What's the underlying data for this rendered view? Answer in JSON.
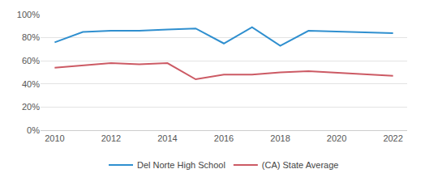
{
  "chart_data": {
    "type": "line",
    "x": [
      2010,
      2011,
      2012,
      2013,
      2014,
      2015,
      2016,
      2017,
      2018,
      2019,
      2022
    ],
    "series": [
      {
        "name": "Del Norte High School",
        "color": "#2f8fcf",
        "values": [
          76,
          85,
          86,
          86,
          87,
          88,
          75,
          89,
          73,
          86,
          84
        ]
      },
      {
        "name": "(CA) State Average",
        "color": "#cc5a64",
        "values": [
          54,
          56,
          58,
          57,
          58,
          44,
          48,
          48,
          50,
          51,
          47
        ]
      }
    ],
    "xlim": [
      2009.5,
      2022.5
    ],
    "xticks": [
      2010,
      2012,
      2014,
      2016,
      2018,
      2020,
      2022
    ],
    "ylim": [
      0,
      100
    ],
    "yticks": [
      {
        "value": 0,
        "label": "0%"
      },
      {
        "value": 20,
        "label": "20%"
      },
      {
        "value": 40,
        "label": "40%"
      },
      {
        "value": 60,
        "label": "60%"
      },
      {
        "value": 80,
        "label": "80%"
      },
      {
        "value": 100,
        "label": "100%"
      }
    ],
    "grid": true,
    "legend": "bottom"
  }
}
